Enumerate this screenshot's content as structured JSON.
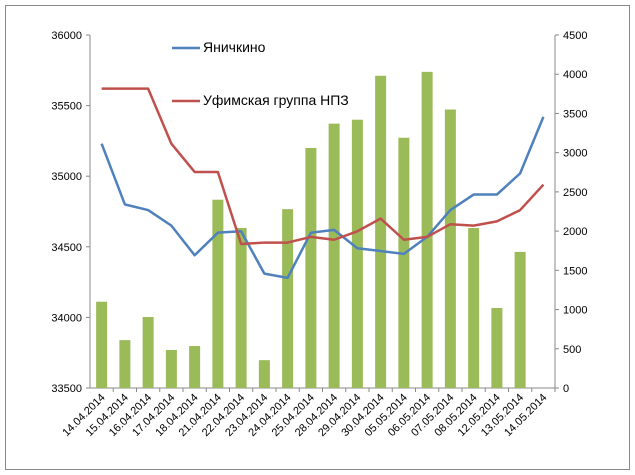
{
  "chart_data": {
    "type": "bar-line",
    "categories": [
      "14.04.2014",
      "15.04.2014",
      "16.04.2014",
      "17.04.2014",
      "18.04.2014",
      "21.04.2014",
      "22.04.2014",
      "23.04.2014",
      "24.04.2014",
      "25.04.2014",
      "28.04.2014",
      "29.04.2014",
      "30.04.2014",
      "05.05.2014",
      "06.05.2014",
      "07.05.2014",
      "08.05.2014",
      "12.05.2014",
      "13.05.2014",
      "14.05.2014"
    ],
    "series": [
      {
        "type": "bar",
        "color": "#9bbb59",
        "axis": "y2",
        "values": [
          1100,
          610,
          905,
          485,
          535,
          2400,
          2040,
          355,
          2280,
          3060,
          3370,
          3420,
          3980,
          3190,
          4030,
          3550,
          2040,
          1020,
          1735,
          null
        ]
      },
      {
        "type": "line",
        "name": "Яничкино",
        "color": "#4f81bd",
        "values": [
          35230,
          34800,
          34760,
          34650,
          34440,
          34600,
          34610,
          34310,
          34280,
          34600,
          34620,
          34490,
          34470,
          34450,
          34570,
          34760,
          34870,
          34870,
          35020,
          35420
        ]
      },
      {
        "type": "line",
        "name": "Уфимская группа НПЗ",
        "color": "#c0504d",
        "values": [
          35620,
          35620,
          35620,
          35230,
          35030,
          35030,
          34520,
          34530,
          34530,
          34570,
          34550,
          34610,
          34700,
          34550,
          34570,
          34660,
          34650,
          34680,
          34760,
          34940
        ]
      }
    ],
    "ylim": [
      33500,
      36000
    ],
    "yticks": [
      33500,
      34000,
      34500,
      35000,
      35500,
      36000
    ],
    "y2lim": [
      0,
      4500
    ],
    "y2ticks": [
      0,
      500,
      1000,
      1500,
      2000,
      2500,
      3000,
      3500,
      4000,
      4500
    ]
  }
}
